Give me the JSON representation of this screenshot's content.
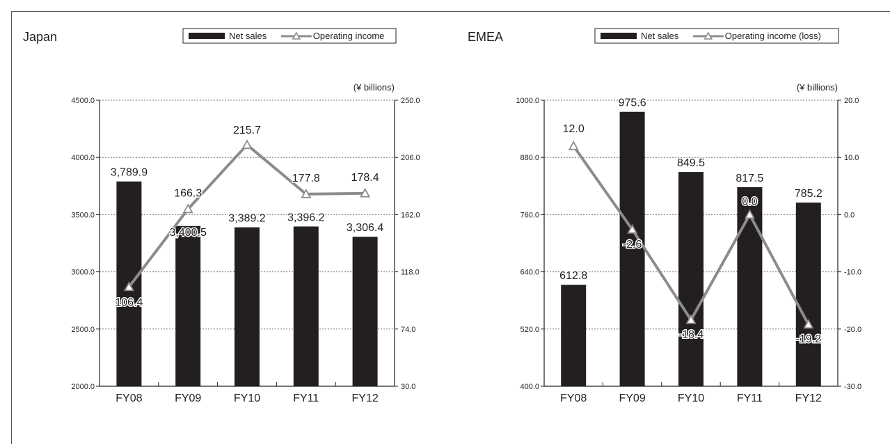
{
  "chart_data": [
    {
      "type": "bar",
      "title": "Japan",
      "unit_label": "(¥ billions)",
      "categories": [
        "FY08",
        "FY09",
        "FY10",
        "FY11",
        "FY12"
      ],
      "series": [
        {
          "name": "Net sales",
          "type": "bar",
          "axis": "left",
          "values": [
            3789.9,
            3400.5,
            3389.2,
            3396.2,
            3306.4
          ],
          "labels": [
            "3,789.9",
            "3,400.5",
            "3,389.2",
            "3,396.2",
            "3,306.4"
          ]
        },
        {
          "name": "Operating income",
          "type": "line",
          "axis": "right",
          "values": [
            106.4,
            166.3,
            215.7,
            177.8,
            178.4
          ],
          "labels": [
            "106.4",
            "166.3",
            "215.7",
            "177.8",
            "178.4"
          ]
        }
      ],
      "left_axis": {
        "ylim": [
          2000,
          4500
        ],
        "ticks": [
          "2000.0",
          "2500.0",
          "3000.0",
          "3500.0",
          "4000.0",
          "4500.0"
        ]
      },
      "right_axis": {
        "ylim": [
          30,
          250
        ],
        "ticks": [
          "30.0",
          "74.0",
          "118.0",
          "162.0",
          "206.0",
          "250.0"
        ]
      },
      "grid": true,
      "legend_position": "top"
    },
    {
      "type": "bar",
      "title": "EMEA",
      "unit_label": "(¥ billions)",
      "categories": [
        "FY08",
        "FY09",
        "FY10",
        "FY11",
        "FY12"
      ],
      "series": [
        {
          "name": "Net sales",
          "type": "bar",
          "axis": "left",
          "values": [
            612.8,
            975.6,
            849.5,
            817.5,
            785.2
          ],
          "labels": [
            "612.8",
            "975.6",
            "849.5",
            "817.5",
            "785.2"
          ]
        },
        {
          "name": "Operating income (loss)",
          "type": "line",
          "axis": "right",
          "values": [
            12.0,
            -2.6,
            -18.4,
            0.0,
            -19.2
          ],
          "labels": [
            "12.0",
            "-2.6",
            "-18.4",
            "0.0",
            "-19.2"
          ]
        }
      ],
      "left_axis": {
        "ylim": [
          400,
          1000
        ],
        "ticks": [
          "400.0",
          "520.0",
          "640.0",
          "760.0",
          "880.0",
          "1000.0"
        ]
      },
      "right_axis": {
        "ylim": [
          -30,
          20
        ],
        "ticks": [
          "-30.0",
          "-20.0",
          "-10.0",
          "0.0",
          "10.0",
          "20.0"
        ]
      },
      "grid": true,
      "legend_position": "top"
    }
  ],
  "colors": {
    "bar": "#231f20",
    "line": "#8c8c8c",
    "grid": "#777777",
    "axis": "#222222",
    "text": "#231f20"
  }
}
